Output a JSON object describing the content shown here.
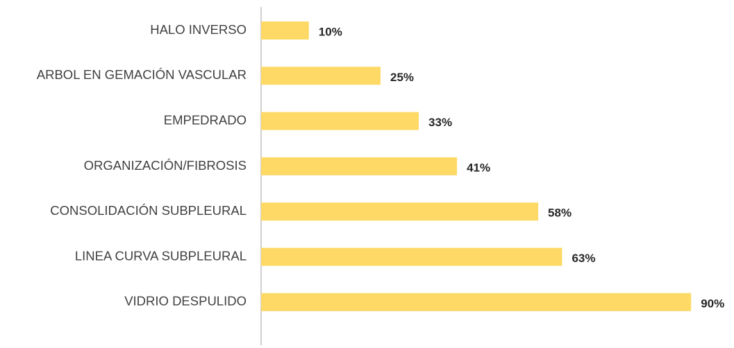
{
  "chart_data": {
    "type": "barh",
    "categories": [
      "HALO INVERSO",
      "ARBOL EN GEMACIÓN VASCULAR",
      "EMPEDRADO",
      "ORGANIZACIÓN/FIBROSIS",
      "CONSOLIDACIÓN SUBPLEURAL",
      "LINEA CURVA SUBPLEURAL",
      "VIDRIO DESPULIDO"
    ],
    "values": [
      10,
      25,
      33,
      41,
      58,
      63,
      90
    ],
    "value_labels": [
      "10%",
      "25%",
      "33%",
      "41%",
      "58%",
      "63%",
      "90%"
    ],
    "color": "#ffd966"
  }
}
